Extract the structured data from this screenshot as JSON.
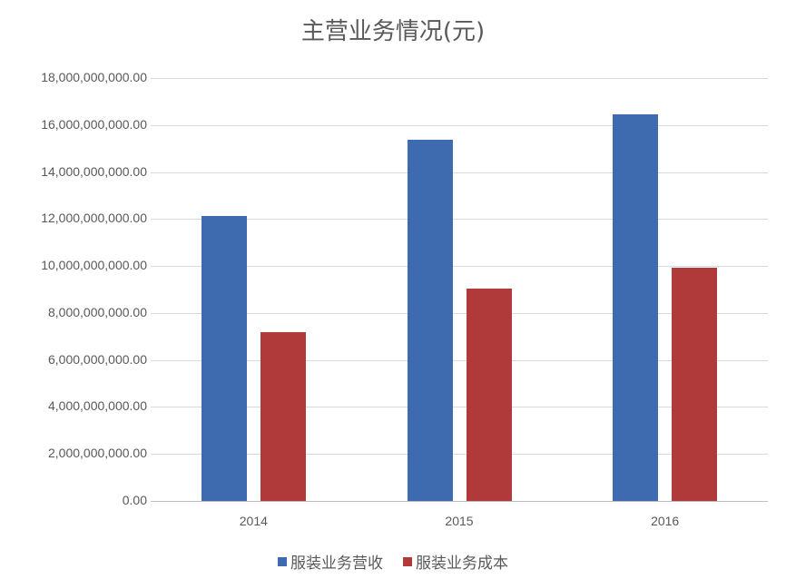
{
  "chart_data": {
    "type": "bar",
    "title": "主营业务情况(元)",
    "categories": [
      "2014",
      "2015",
      "2016"
    ],
    "series": [
      {
        "name": "服装业务营收",
        "color": "#3e6baf",
        "values": [
          12120000000,
          15370000000,
          16450000000
        ]
      },
      {
        "name": "服装业务成本",
        "color": "#b03a3a",
        "values": [
          7190000000,
          9030000000,
          9920000000
        ]
      }
    ],
    "xlabel": "",
    "ylabel": "",
    "ylim": [
      0,
      18000000000
    ],
    "yticks": [
      "0.00",
      "2,000,000,000.00",
      "4,000,000,000.00",
      "6,000,000,000.00",
      "8,000,000,000.00",
      "10,000,000,000.00",
      "12,000,000,000.00",
      "14,000,000,000.00",
      "16,000,000,000.00",
      "18,000,000,000.00"
    ],
    "grid": true,
    "legend_position": "bottom"
  }
}
